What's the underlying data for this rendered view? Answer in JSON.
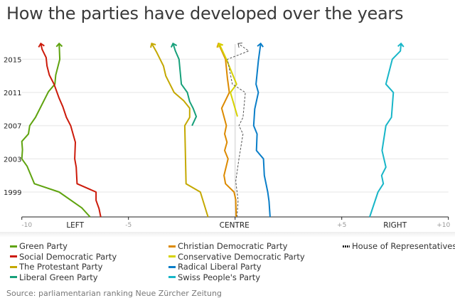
{
  "chart_data": {
    "type": "line",
    "title": "How the parties have developed over the years",
    "xlabel": "",
    "ylabel": "",
    "xlim": [
      -10,
      10
    ],
    "ylim": [
      1996,
      2017
    ],
    "x_ticks": [
      {
        "value": -10,
        "label": "-10"
      },
      {
        "value": -5,
        "label": "-5"
      },
      {
        "value": 5,
        "label": "+5"
      },
      {
        "value": 10,
        "label": "+10"
      }
    ],
    "x_region_labels": [
      {
        "value": -7.5,
        "label": "LEFT"
      },
      {
        "value": 0,
        "label": "CENTRE"
      },
      {
        "value": 7.5,
        "label": "RIGHT"
      }
    ],
    "y_ticks": [
      {
        "value": 1999,
        "label": "1999"
      },
      {
        "value": 2003,
        "label": "2003"
      },
      {
        "value": 2007,
        "label": "2007"
      },
      {
        "value": 2011,
        "label": "2011"
      },
      {
        "value": 2015,
        "label": "2015"
      }
    ],
    "grid": true,
    "legend_position": "bottom",
    "series": [
      {
        "name": "Green Party",
        "color": "#5fa30f",
        "dashed": false,
        "points": [
          [
            -6.8,
            1996
          ],
          [
            -7.19,
            1997.1
          ],
          [
            -8.25,
            1999
          ],
          [
            -9.41,
            2000
          ],
          [
            -9.75,
            2002.1
          ],
          [
            -10,
            2003
          ],
          [
            -9.97,
            2004.1
          ],
          [
            -10,
            2005.1
          ],
          [
            -9.69,
            2006
          ],
          [
            -9.63,
            2007
          ],
          [
            -9.36,
            2008
          ],
          [
            -8.75,
            2011.1
          ],
          [
            -8.45,
            2012
          ],
          [
            -8.41,
            2013.1
          ],
          [
            -8.22,
            2015
          ],
          [
            -8.25,
            2016.9
          ]
        ]
      },
      {
        "name": "Social Democratic Party",
        "color": "#cc1a0a",
        "dashed": false,
        "points": [
          [
            -6.3,
            1996
          ],
          [
            -6.38,
            1997
          ],
          [
            -6.52,
            1998
          ],
          [
            -6.52,
            1999
          ],
          [
            -7.41,
            2000
          ],
          [
            -7.45,
            2002
          ],
          [
            -7.52,
            2003
          ],
          [
            -7.49,
            2005
          ],
          [
            -7.71,
            2007
          ],
          [
            -7.91,
            2008
          ],
          [
            -8.08,
            2009.3
          ],
          [
            -8.25,
            2010.3
          ],
          [
            -8.49,
            2012
          ],
          [
            -8.71,
            2013.1
          ],
          [
            -8.82,
            2014.2
          ],
          [
            -8.86,
            2015.2
          ],
          [
            -9.05,
            2016.2
          ],
          [
            -9.11,
            2016.9
          ]
        ]
      },
      {
        "name": "The Protestant Party",
        "color": "#c4a800",
        "dashed": false,
        "points": [
          [
            -1.27,
            1996
          ],
          [
            -1.63,
            1999
          ],
          [
            -2.3,
            2000
          ],
          [
            -2.36,
            2007
          ],
          [
            -2.13,
            2008
          ],
          [
            -2.13,
            2009.1
          ],
          [
            -2.41,
            2010
          ],
          [
            -2.86,
            2011
          ],
          [
            -3.25,
            2013
          ],
          [
            -3.36,
            2014.2
          ],
          [
            -3.69,
            2015.9
          ],
          [
            -3.91,
            2016.9
          ]
        ]
      },
      {
        "name": "Liberal Green Party",
        "color": "#16a07a",
        "dashed": false,
        "points": [
          [
            -2.02,
            2007
          ],
          [
            -1.82,
            2008.1
          ],
          [
            -1.97,
            2009.1
          ],
          [
            -2.13,
            2009.9
          ],
          [
            -2.24,
            2011
          ],
          [
            -2.52,
            2012
          ],
          [
            -2.63,
            2015
          ],
          [
            -2.8,
            2016
          ],
          [
            -2.91,
            2016.9
          ]
        ]
      },
      {
        "name": "Christian Democratic Party",
        "color": "#dc8a00",
        "dashed": false,
        "points": [
          [
            0.05,
            1996
          ],
          [
            0.03,
            1998.1
          ],
          [
            -0.05,
            1999
          ],
          [
            -0.45,
            2000
          ],
          [
            -0.52,
            2001
          ],
          [
            -0.33,
            2003
          ],
          [
            -0.49,
            2004
          ],
          [
            -0.38,
            2005
          ],
          [
            -0.49,
            2006
          ],
          [
            -0.41,
            2007
          ],
          [
            -0.63,
            2009.1
          ],
          [
            -0.27,
            2011
          ],
          [
            -0.36,
            2012.7
          ],
          [
            -0.45,
            2015
          ],
          [
            -0.78,
            2016.9
          ]
        ]
      },
      {
        "name": "Conservative Democratic Party",
        "color": "#d6d200",
        "dashed": false,
        "points": [
          [
            0.11,
            2008.1
          ],
          [
            -0.22,
            2011
          ],
          [
            0.07,
            2012
          ],
          [
            -0.41,
            2015
          ],
          [
            -0.75,
            2016.9
          ]
        ]
      },
      {
        "name": "Radical Liberal Party",
        "color": "#0a7ec8",
        "dashed": false,
        "points": [
          [
            1.64,
            1996
          ],
          [
            1.59,
            1997.9
          ],
          [
            1.53,
            1999
          ],
          [
            1.37,
            2001
          ],
          [
            1.33,
            2003
          ],
          [
            1.0,
            2004
          ],
          [
            1.03,
            2006
          ],
          [
            0.87,
            2007
          ],
          [
            0.92,
            2009
          ],
          [
            1.09,
            2011
          ],
          [
            0.98,
            2012
          ],
          [
            1.09,
            2014.8
          ],
          [
            1.2,
            2016.9
          ]
        ]
      },
      {
        "name": "Swiss People's Party",
        "color": "#18b6c8",
        "dashed": false,
        "points": [
          [
            6.31,
            1996
          ],
          [
            6.7,
            1999
          ],
          [
            6.95,
            2000
          ],
          [
            6.87,
            2001
          ],
          [
            7.07,
            2002
          ],
          [
            6.89,
            2004
          ],
          [
            7.07,
            2007
          ],
          [
            7.33,
            2008
          ],
          [
            7.42,
            2011
          ],
          [
            7.07,
            2012
          ],
          [
            7.37,
            2015
          ],
          [
            7.75,
            2016
          ],
          [
            7.78,
            2016.9
          ]
        ]
      },
      {
        "name": "House of Representatives",
        "color": "#555555",
        "dashed": true,
        "points": [
          [
            0.09,
            1996
          ],
          [
            0.14,
            1998
          ],
          [
            0.03,
            2000.3
          ],
          [
            0.18,
            2003
          ],
          [
            0.37,
            2006
          ],
          [
            0.18,
            2007
          ],
          [
            0.37,
            2008
          ],
          [
            0.48,
            2011
          ],
          [
            -0.13,
            2012
          ],
          [
            -0.36,
            2015
          ],
          [
            0.64,
            2016
          ],
          [
            0.14,
            2016.9
          ]
        ]
      }
    ]
  },
  "legend": {
    "col1": [
      0,
      1,
      2,
      3
    ],
    "col2": [
      4,
      5,
      6,
      7
    ],
    "col3": [
      8
    ]
  },
  "source": "Source: parliamentarian ranking Neue Zürcher Zeitung"
}
